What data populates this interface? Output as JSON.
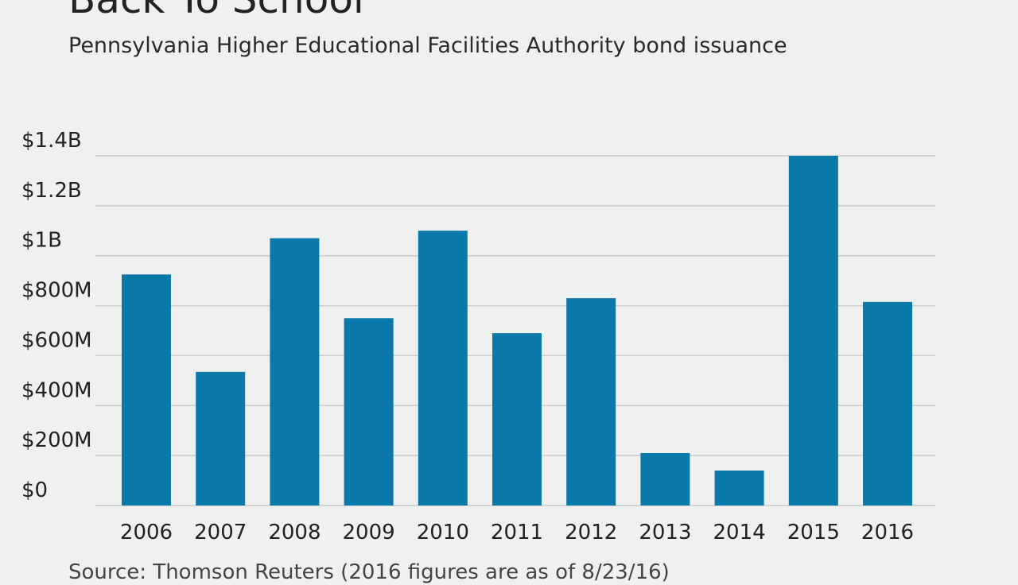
{
  "header": {
    "title": "Back To School",
    "subtitle": "Pennsylvania Higher Educational Facilities Authority bond issuance"
  },
  "footer": {
    "source": "Source: Thomson Reuters (2016 figures are as of 8/23/16)"
  },
  "colors": {
    "bar": "#0a78a8",
    "grid": "#c9cccc",
    "background": "#eff1f1"
  },
  "chart_data": {
    "type": "bar",
    "title": "Back To School",
    "subtitle": "Pennsylvania Higher Educational Facilities Authority bond issuance",
    "xlabel": "",
    "ylabel": "",
    "categories": [
      "2006",
      "2007",
      "2008",
      "2009",
      "2010",
      "2011",
      "2012",
      "2013",
      "2014",
      "2015",
      "2016"
    ],
    "values": [
      925,
      535,
      1070,
      750,
      1100,
      690,
      830,
      210,
      140,
      1400,
      815
    ],
    "units": "millions of dollars",
    "ylim": [
      0,
      1400
    ],
    "yticks": [
      0,
      200,
      400,
      600,
      800,
      1000,
      1200,
      1400
    ],
    "ytick_labels": [
      "$0",
      "$200M",
      "$400M",
      "$600M",
      "$800M",
      "$1B",
      "$1.2B",
      "$1.4B"
    ],
    "grid": true,
    "legend": "none"
  }
}
